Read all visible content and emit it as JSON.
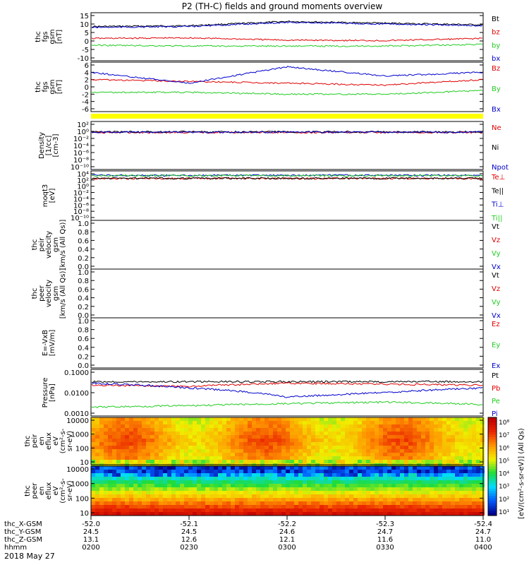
{
  "title": "P2 (TH-C) fields and ground moments overview",
  "date_label": "2018 May 27",
  "colors": {
    "black": "#000000",
    "red": "#e00000",
    "green": "#22cc22",
    "blue": "#0000cc",
    "yellow": "#ffff00"
  },
  "panels": [
    {
      "ylabel": [
        "thc",
        "fgs",
        "gsm",
        "[nT]"
      ],
      "ticks": [
        "15",
        "10",
        "5",
        "0",
        "-5",
        "-10"
      ],
      "legend": [
        {
          "text": "Bt",
          "color": "#000000"
        },
        {
          "text": "bz",
          "color": "#e00000"
        },
        {
          "text": "by",
          "color": "#22cc22"
        },
        {
          "text": "bx",
          "color": "#0000cc"
        }
      ]
    },
    {
      "ylabel": [
        "thc",
        "fgs",
        "gsm",
        "[nT]"
      ],
      "ticks": [
        "6",
        "4",
        "2",
        "0",
        "-2",
        "-4",
        "-6"
      ],
      "legend": [
        {
          "text": "Bz",
          "color": "#e00000"
        },
        {
          "text": "By",
          "color": "#22cc22"
        },
        {
          "text": "Bx",
          "color": "#0000cc"
        }
      ]
    },
    {
      "ylabel": [
        "Density",
        "[1/cc]",
        "[cm-3]"
      ],
      "ticks": [
        "10²",
        "10⁰",
        "10⁻²",
        "10⁻⁴",
        "10⁻⁶",
        "10⁻⁸",
        "10⁻¹⁰"
      ],
      "legend": [
        {
          "text": "Ne",
          "color": "#e00000"
        },
        {
          "text": "Ni",
          "color": "#000000"
        },
        {
          "text": "Npot",
          "color": "#0000cc"
        }
      ]
    },
    {
      "ylabel": [
        "moqt3",
        "[eV]"
      ],
      "ticks": [
        "10⁴",
        "10²",
        "10⁰",
        "10⁻²",
        "10⁻⁴",
        "10⁻⁶",
        "10⁻⁸",
        "10⁻¹⁰"
      ],
      "legend": [
        {
          "text": "Te⊥",
          "color": "#e00000"
        },
        {
          "text": "Te||",
          "color": "#000000"
        },
        {
          "text": "Ti⊥",
          "color": "#0000cc"
        },
        {
          "text": "Ti||",
          "color": "#22cc22"
        }
      ]
    },
    {
      "ylabel": [
        "thc",
        "peir",
        "velocity",
        "gsm",
        "[km/s (All Qs)]"
      ],
      "ticks": [
        "1.0",
        "0.8",
        "0.6",
        "0.4",
        "0.2",
        "0.0"
      ],
      "legend": [
        {
          "text": "Vt",
          "color": "#000000"
        },
        {
          "text": "Vz",
          "color": "#e00000"
        },
        {
          "text": "Vy",
          "color": "#22cc22"
        },
        {
          "text": "Vx",
          "color": "#0000cc"
        }
      ]
    },
    {
      "ylabel": [
        "thc",
        "peer",
        "velocity",
        "gsm",
        "[km/s (All Qs)]"
      ],
      "ticks": [
        "1.0",
        "0.8",
        "0.6",
        "0.4",
        "0.2",
        "0.0"
      ],
      "legend": [
        {
          "text": "Vt",
          "color": "#000000"
        },
        {
          "text": "Vz",
          "color": "#e00000"
        },
        {
          "text": "Vy",
          "color": "#22cc22"
        },
        {
          "text": "Vx",
          "color": "#0000cc"
        }
      ]
    },
    {
      "ylabel": [
        "E=-VxB",
        "[mV/m]"
      ],
      "ticks": [
        "1.0",
        "0.8",
        "0.6",
        "0.4",
        "0.2",
        "0.0"
      ],
      "legend": [
        {
          "text": "Ez",
          "color": "#e00000"
        },
        {
          "text": "Ey",
          "color": "#22cc22"
        },
        {
          "text": "Ex",
          "color": "#0000cc"
        }
      ]
    },
    {
      "ylabel": [
        "Pressure",
        "[nPa]"
      ],
      "ticks": [
        "0.1000",
        "0.0100",
        "0.0010"
      ],
      "legend": [
        {
          "text": "Pt",
          "color": "#000000"
        },
        {
          "text": "Pb",
          "color": "#e00000"
        },
        {
          "text": "Pe",
          "color": "#22cc22"
        },
        {
          "text": "Pi",
          "color": "#0000cc"
        }
      ]
    },
    {
      "ylabel": [
        "thc",
        "peir",
        "en",
        "eflux",
        "eV",
        "(cm²-s-",
        "sr-eV)"
      ],
      "ticks": [
        "10000",
        "1000",
        "100",
        "10"
      ],
      "legend": []
    },
    {
      "ylabel": [
        "thc",
        "peer",
        "en",
        "eflux",
        "eV",
        "(cm²-s-",
        "sr-eV)"
      ],
      "ticks": [
        "10000",
        "1000",
        "100",
        "10"
      ],
      "legend": []
    }
  ],
  "colorbar": {
    "label": "[eV/(cm²-s-sr-eV)] (All Qs)",
    "ticks": [
      "10⁸",
      "10⁷",
      "10⁶",
      "10⁵",
      "10⁴",
      "10³",
      "10²",
      "10¹"
    ]
  },
  "xaxis": {
    "rows": [
      {
        "label": "thc_X-GSM",
        "values": [
          "-52.0",
          "-52.1",
          "-52.2",
          "-52.3",
          "-52.4"
        ]
      },
      {
        "label": "thc_Y-GSM",
        "values": [
          "24.5",
          "24.5",
          "24.6",
          "24.7",
          "24.7"
        ]
      },
      {
        "label": "thc_Z-GSM",
        "values": [
          "13.1",
          "12.6",
          "12.1",
          "11.6",
          "11.0"
        ]
      },
      {
        "label": "hhmm",
        "values": [
          "0200",
          "0230",
          "0300",
          "0330",
          "0400"
        ]
      }
    ]
  },
  "chart_data": {
    "type": "line",
    "title": "P2 (TH-C) fields and ground moments overview",
    "x": [
      "0200",
      "0230",
      "0300",
      "0330",
      "0400"
    ],
    "panels": [
      {
        "ylabel": "thc fgs gsm [nT]",
        "ylim": [
          -10,
          15
        ],
        "series": [
          {
            "name": "Bt",
            "values": [
              8.5,
              9.0,
              11.5,
              10.5,
              9.5
            ]
          },
          {
            "name": "bz",
            "values": [
              1.5,
              1.8,
              0.5,
              0.2,
              1.5
            ]
          },
          {
            "name": "by",
            "values": [
              -2.5,
              -3.0,
              -3.0,
              -3.0,
              -2.0
            ]
          },
          {
            "name": "bx",
            "values": [
              8.0,
              8.5,
              11.0,
              10.0,
              9.0
            ]
          }
        ]
      },
      {
        "ylabel": "thc fgs gsm [nT]",
        "ylim": [
          -6,
          6
        ],
        "series": [
          {
            "name": "Bz",
            "values": [
              2.0,
              1.5,
              1.0,
              0.5,
              2.0
            ]
          },
          {
            "name": "By",
            "values": [
              -1.5,
              -1.5,
              -2.0,
              -2.0,
              -1.0
            ]
          },
          {
            "name": "Bx",
            "values": [
              4.0,
              1.0,
              5.5,
              3.0,
              4.0
            ]
          }
        ]
      },
      {
        "ylabel": "Density [1/cc] [cm-3]",
        "ylim": [
          1e-10,
          100
        ],
        "log": true,
        "series": [
          {
            "name": "Ne",
            "values": [
              0.5,
              0.5,
              0.5,
              0.5,
              0.5
            ]
          },
          {
            "name": "Ni",
            "values": [
              0.7,
              0.7,
              0.7,
              0.7,
              0.7
            ]
          },
          {
            "name": "Npot",
            "values": [
              0.6,
              0.6,
              0.6,
              0.6,
              0.6
            ]
          }
        ]
      },
      {
        "ylabel": "moqt3 [eV]",
        "ylim": [
          1e-10,
          10000
        ],
        "log": true,
        "series": [
          {
            "name": "Te⊥",
            "values": [
              300,
              300,
              300,
              300,
              300
            ]
          },
          {
            "name": "Te||",
            "values": [
              350,
              350,
              350,
              350,
              350
            ]
          },
          {
            "name": "Ti⊥",
            "values": [
              3000,
              3000,
              3000,
              3000,
              3000
            ]
          },
          {
            "name": "Ti||",
            "values": [
              2500,
              2500,
              2500,
              2500,
              2500
            ]
          }
        ]
      },
      {
        "ylabel": "Pressure [nPa]",
        "ylim": [
          0.0005,
          0.2
        ],
        "log": true,
        "series": [
          {
            "name": "Pt",
            "values": [
              0.05,
              0.05,
              0.05,
              0.05,
              0.05
            ]
          },
          {
            "name": "Pb",
            "values": [
              0.03,
              0.025,
              0.04,
              0.035,
              0.03
            ]
          },
          {
            "name": "Pe",
            "values": [
              0.0012,
              0.0015,
              0.002,
              0.0025,
              0.0018
            ]
          },
          {
            "name": "Pi",
            "values": [
              0.04,
              0.02,
              0.005,
              0.01,
              0.02
            ]
          }
        ]
      }
    ]
  }
}
